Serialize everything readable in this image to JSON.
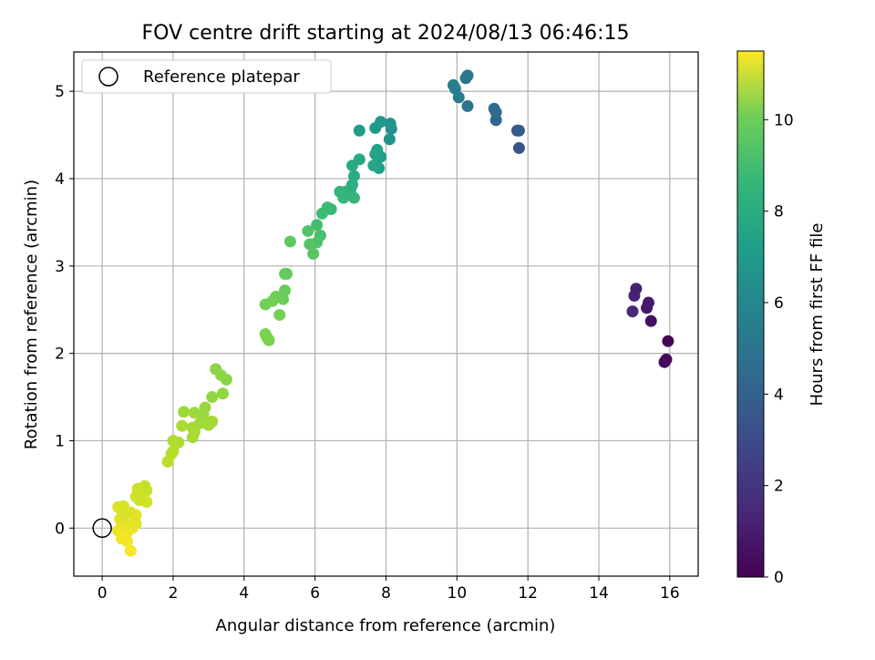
{
  "chart_data": {
    "type": "scatter",
    "title": "FOV centre drift starting at 2024/08/13 06:46:15",
    "xlabel": "Angular distance from reference (arcmin)",
    "ylabel": "Rotation from reference (arcmin)",
    "xlim": [
      -0.8,
      16.8
    ],
    "ylim": [
      -0.55,
      5.45
    ],
    "x_ticks": [
      0,
      2,
      4,
      6,
      8,
      10,
      12,
      14,
      16
    ],
    "y_ticks": [
      0,
      1,
      2,
      3,
      4,
      5
    ],
    "grid": true,
    "legend": {
      "placement": "top-left",
      "entries": [
        "Reference platepar"
      ]
    },
    "reference_point": {
      "x": 0,
      "y": 0,
      "label": "Reference platepar"
    },
    "colorbar": {
      "label": "Hours from first FF file",
      "range": [
        0,
        11.5
      ],
      "ticks": [
        0,
        2,
        4,
        6,
        8,
        10
      ],
      "colormap": "viridis"
    },
    "points": [
      {
        "x": 15.95,
        "y": 2.14,
        "t": 0.1
      },
      {
        "x": 15.85,
        "y": 1.9,
        "t": 0.2
      },
      {
        "x": 15.9,
        "y": 1.93,
        "t": 0.3
      },
      {
        "x": 15.47,
        "y": 2.37,
        "t": 0.5
      },
      {
        "x": 15.35,
        "y": 2.52,
        "t": 0.7
      },
      {
        "x": 15.4,
        "y": 2.58,
        "t": 0.8
      },
      {
        "x": 15.05,
        "y": 2.74,
        "t": 1.0
      },
      {
        "x": 15.0,
        "y": 2.66,
        "t": 1.1
      },
      {
        "x": 14.95,
        "y": 2.48,
        "t": 1.3
      },
      {
        "x": 11.75,
        "y": 4.35,
        "t": 3.0
      },
      {
        "x": 11.7,
        "y": 4.55,
        "t": 3.1
      },
      {
        "x": 11.75,
        "y": 4.55,
        "t": 3.2
      },
      {
        "x": 11.1,
        "y": 4.67,
        "t": 3.8
      },
      {
        "x": 11.1,
        "y": 4.76,
        "t": 3.9
      },
      {
        "x": 11.05,
        "y": 4.8,
        "t": 4.0
      },
      {
        "x": 10.3,
        "y": 4.83,
        "t": 4.4
      },
      {
        "x": 10.25,
        "y": 5.15,
        "t": 4.5
      },
      {
        "x": 10.3,
        "y": 5.18,
        "t": 4.6
      },
      {
        "x": 10.05,
        "y": 4.93,
        "t": 4.7
      },
      {
        "x": 9.95,
        "y": 5.03,
        "t": 4.8
      },
      {
        "x": 9.9,
        "y": 5.07,
        "t": 4.9
      },
      {
        "x": 8.15,
        "y": 4.57,
        "t": 5.8
      },
      {
        "x": 8.1,
        "y": 4.45,
        "t": 5.9
      },
      {
        "x": 8.12,
        "y": 4.63,
        "t": 6.0
      },
      {
        "x": 7.85,
        "y": 4.65,
        "t": 6.1
      },
      {
        "x": 7.7,
        "y": 4.58,
        "t": 6.2
      },
      {
        "x": 7.25,
        "y": 4.55,
        "t": 6.3
      },
      {
        "x": 7.85,
        "y": 4.25,
        "t": 6.4
      },
      {
        "x": 7.8,
        "y": 4.12,
        "t": 6.5
      },
      {
        "x": 7.75,
        "y": 4.33,
        "t": 6.6
      },
      {
        "x": 7.7,
        "y": 4.28,
        "t": 6.7
      },
      {
        "x": 7.65,
        "y": 4.15,
        "t": 6.8
      },
      {
        "x": 7.25,
        "y": 4.22,
        "t": 6.9
      },
      {
        "x": 7.05,
        "y": 4.15,
        "t": 7.0
      },
      {
        "x": 7.1,
        "y": 4.03,
        "t": 7.1
      },
      {
        "x": 7.05,
        "y": 3.93,
        "t": 7.2
      },
      {
        "x": 7.0,
        "y": 3.88,
        "t": 7.3
      },
      {
        "x": 6.85,
        "y": 3.85,
        "t": 7.4
      },
      {
        "x": 6.7,
        "y": 3.85,
        "t": 7.5
      },
      {
        "x": 6.8,
        "y": 3.78,
        "t": 7.6
      },
      {
        "x": 7.1,
        "y": 3.78,
        "t": 7.6
      },
      {
        "x": 6.45,
        "y": 3.65,
        "t": 7.7
      },
      {
        "x": 6.35,
        "y": 3.67,
        "t": 7.8
      },
      {
        "x": 6.2,
        "y": 3.6,
        "t": 7.9
      },
      {
        "x": 6.05,
        "y": 3.47,
        "t": 8.0
      },
      {
        "x": 6.15,
        "y": 3.35,
        "t": 8.1
      },
      {
        "x": 6.05,
        "y": 3.27,
        "t": 8.2
      },
      {
        "x": 5.8,
        "y": 3.4,
        "t": 8.3
      },
      {
        "x": 5.85,
        "y": 3.25,
        "t": 8.4
      },
      {
        "x": 5.95,
        "y": 3.14,
        "t": 8.5
      },
      {
        "x": 5.3,
        "y": 3.28,
        "t": 8.6
      },
      {
        "x": 5.2,
        "y": 2.91,
        "t": 8.7
      },
      {
        "x": 5.15,
        "y": 2.91,
        "t": 8.7
      },
      {
        "x": 5.15,
        "y": 2.72,
        "t": 8.8
      },
      {
        "x": 5.1,
        "y": 2.62,
        "t": 8.9
      },
      {
        "x": 4.9,
        "y": 2.65,
        "t": 8.9
      },
      {
        "x": 4.8,
        "y": 2.6,
        "t": 9.0
      },
      {
        "x": 4.6,
        "y": 2.56,
        "t": 9.0
      },
      {
        "x": 5.0,
        "y": 2.44,
        "t": 9.1
      },
      {
        "x": 4.6,
        "y": 2.22,
        "t": 9.1
      },
      {
        "x": 4.65,
        "y": 2.18,
        "t": 9.2
      },
      {
        "x": 4.7,
        "y": 2.15,
        "t": 9.2
      },
      {
        "x": 3.5,
        "y": 1.7,
        "t": 9.4
      },
      {
        "x": 3.35,
        "y": 1.75,
        "t": 9.5
      },
      {
        "x": 3.2,
        "y": 1.82,
        "t": 9.5
      },
      {
        "x": 3.4,
        "y": 1.54,
        "t": 9.6
      },
      {
        "x": 3.1,
        "y": 1.5,
        "t": 9.6
      },
      {
        "x": 2.9,
        "y": 1.38,
        "t": 9.7
      },
      {
        "x": 2.85,
        "y": 1.3,
        "t": 9.7
      },
      {
        "x": 2.6,
        "y": 1.32,
        "t": 9.8
      },
      {
        "x": 2.3,
        "y": 1.33,
        "t": 9.8
      },
      {
        "x": 2.75,
        "y": 1.2,
        "t": 9.8
      },
      {
        "x": 3.0,
        "y": 1.18,
        "t": 9.9
      },
      {
        "x": 3.1,
        "y": 1.22,
        "t": 9.9
      },
      {
        "x": 2.55,
        "y": 1.15,
        "t": 9.9
      },
      {
        "x": 2.25,
        "y": 1.17,
        "t": 10.0
      },
      {
        "x": 2.6,
        "y": 1.1,
        "t": 10.0
      },
      {
        "x": 2.55,
        "y": 1.04,
        "t": 10.0
      },
      {
        "x": 2.15,
        "y": 0.98,
        "t": 10.1
      },
      {
        "x": 2.0,
        "y": 1.0,
        "t": 10.1
      },
      {
        "x": 2.0,
        "y": 0.88,
        "t": 10.2
      },
      {
        "x": 1.95,
        "y": 0.85,
        "t": 10.2
      },
      {
        "x": 1.85,
        "y": 0.76,
        "t": 10.3
      },
      {
        "x": 1.2,
        "y": 0.48,
        "t": 10.5
      },
      {
        "x": 1.25,
        "y": 0.43,
        "t": 10.5
      },
      {
        "x": 1.0,
        "y": 0.45,
        "t": 10.6
      },
      {
        "x": 1.1,
        "y": 0.38,
        "t": 10.6
      },
      {
        "x": 1.05,
        "y": 0.32,
        "t": 10.6
      },
      {
        "x": 1.25,
        "y": 0.3,
        "t": 10.7
      },
      {
        "x": 0.95,
        "y": 0.36,
        "t": 10.7
      },
      {
        "x": 0.9,
        "y": 0.15,
        "t": 10.8
      },
      {
        "x": 0.8,
        "y": 0.18,
        "t": 10.8
      },
      {
        "x": 0.6,
        "y": 0.25,
        "t": 10.9
      },
      {
        "x": 0.45,
        "y": 0.24,
        "t": 10.9
      },
      {
        "x": 0.55,
        "y": 0.2,
        "t": 10.9
      },
      {
        "x": 0.5,
        "y": 0.1,
        "t": 11.0
      },
      {
        "x": 0.65,
        "y": 0.05,
        "t": 11.0
      },
      {
        "x": 0.95,
        "y": 0.05,
        "t": 11.0
      },
      {
        "x": 0.85,
        "y": 0.0,
        "t": 11.1
      },
      {
        "x": 0.75,
        "y": 0.03,
        "t": 11.1
      },
      {
        "x": 0.55,
        "y": 0.0,
        "t": 11.1
      },
      {
        "x": 0.45,
        "y": -0.03,
        "t": 11.2
      },
      {
        "x": 0.7,
        "y": -0.05,
        "t": 11.2
      },
      {
        "x": 0.6,
        "y": -0.08,
        "t": 11.2
      },
      {
        "x": 0.55,
        "y": -0.12,
        "t": 11.3
      },
      {
        "x": 0.7,
        "y": -0.15,
        "t": 11.3
      },
      {
        "x": 0.8,
        "y": -0.26,
        "t": 11.4
      },
      {
        "x": 0.95,
        "y": 0.15,
        "t": 11.0
      },
      {
        "x": 0.65,
        "y": 0.16,
        "t": 10.9
      }
    ]
  }
}
